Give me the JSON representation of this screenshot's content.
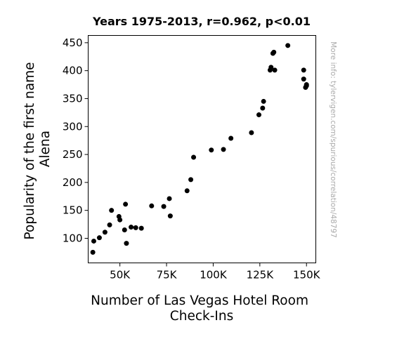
{
  "chart_data": {
    "type": "scatter",
    "title": "Years 1975-2013, r=0.962, p<0.01",
    "xlabel": [
      "Number of Las Vegas Hotel Room",
      "Check-Ins"
    ],
    "ylabel": [
      "Popularity of the first name",
      "Alena"
    ],
    "xlim": [
      33000,
      155000
    ],
    "ylim": [
      56,
      463
    ],
    "xticks": [
      50000,
      75000,
      100000,
      125000,
      150000
    ],
    "xtick_labels": [
      "50K",
      "75K",
      "100K",
      "125K",
      "150K"
    ],
    "yticks": [
      100,
      150,
      200,
      250,
      300,
      350,
      400,
      450
    ],
    "ytick_labels": [
      "100",
      "150",
      "200",
      "250",
      "300",
      "350",
      "400",
      "450"
    ],
    "grid": false,
    "marker_color": "#000000",
    "points": [
      {
        "x": 35500,
        "y": 75
      },
      {
        "x": 36000,
        "y": 95
      },
      {
        "x": 39000,
        "y": 101
      },
      {
        "x": 42000,
        "y": 111
      },
      {
        "x": 44500,
        "y": 124
      },
      {
        "x": 45500,
        "y": 150
      },
      {
        "x": 49500,
        "y": 139
      },
      {
        "x": 50000,
        "y": 133
      },
      {
        "x": 52500,
        "y": 115
      },
      {
        "x": 53000,
        "y": 161
      },
      {
        "x": 53500,
        "y": 91
      },
      {
        "x": 56000,
        "y": 120
      },
      {
        "x": 58500,
        "y": 119
      },
      {
        "x": 61500,
        "y": 118
      },
      {
        "x": 67000,
        "y": 158
      },
      {
        "x": 73500,
        "y": 157
      },
      {
        "x": 76500,
        "y": 171
      },
      {
        "x": 77000,
        "y": 140
      },
      {
        "x": 86000,
        "y": 185
      },
      {
        "x": 88000,
        "y": 205
      },
      {
        "x": 89500,
        "y": 245
      },
      {
        "x": 99000,
        "y": 258
      },
      {
        "x": 105500,
        "y": 259
      },
      {
        "x": 109500,
        "y": 279
      },
      {
        "x": 120500,
        "y": 289
      },
      {
        "x": 124500,
        "y": 321
      },
      {
        "x": 126500,
        "y": 333
      },
      {
        "x": 127000,
        "y": 345
      },
      {
        "x": 130500,
        "y": 401
      },
      {
        "x": 131000,
        "y": 406
      },
      {
        "x": 132000,
        "y": 431
      },
      {
        "x": 132500,
        "y": 433
      },
      {
        "x": 133000,
        "y": 401
      },
      {
        "x": 140000,
        "y": 445
      },
      {
        "x": 148500,
        "y": 401
      },
      {
        "x": 148500,
        "y": 385
      },
      {
        "x": 149500,
        "y": 370
      },
      {
        "x": 150000,
        "y": 375
      },
      {
        "x": 150000,
        "y": 373
      }
    ]
  },
  "watermark": "More info: tylervigen.com/spurious/correlation/48797"
}
